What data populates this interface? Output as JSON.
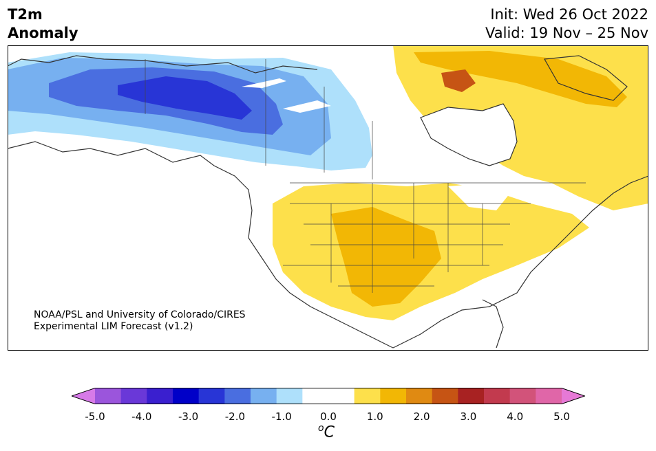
{
  "header": {
    "variable": "T2m",
    "field": "Anomaly",
    "init": "Init: Wed 26 Oct 2022",
    "valid": "Valid: 19 Nov – 25 Nov"
  },
  "credit": {
    "line1": "NOAA/PSL and University of Colorado/CIRES",
    "line2": "Experimental LIM Forecast (v1.2)"
  },
  "colorbar": {
    "colors": [
      "#d77ae8",
      "#9b55dc",
      "#6a38d8",
      "#3a1fcf",
      "#0000c8",
      "#2835d6",
      "#4a6ee0",
      "#77b0f0",
      "#aee0fb",
      "#ffffff",
      "#ffffff",
      "#fde04b",
      "#f2b705",
      "#e08a12",
      "#c65414",
      "#a82222",
      "#c23a4e",
      "#d2537a",
      "#e066a8",
      "#e679d6"
    ],
    "tick_labels": [
      "-5.0",
      "-4.0",
      "-3.0",
      "-2.0",
      "-1.0",
      "0.0",
      "1.0",
      "2.0",
      "3.0",
      "4.0",
      "5.0"
    ],
    "unit_base": "C",
    "unit_sup": "o"
  }
}
